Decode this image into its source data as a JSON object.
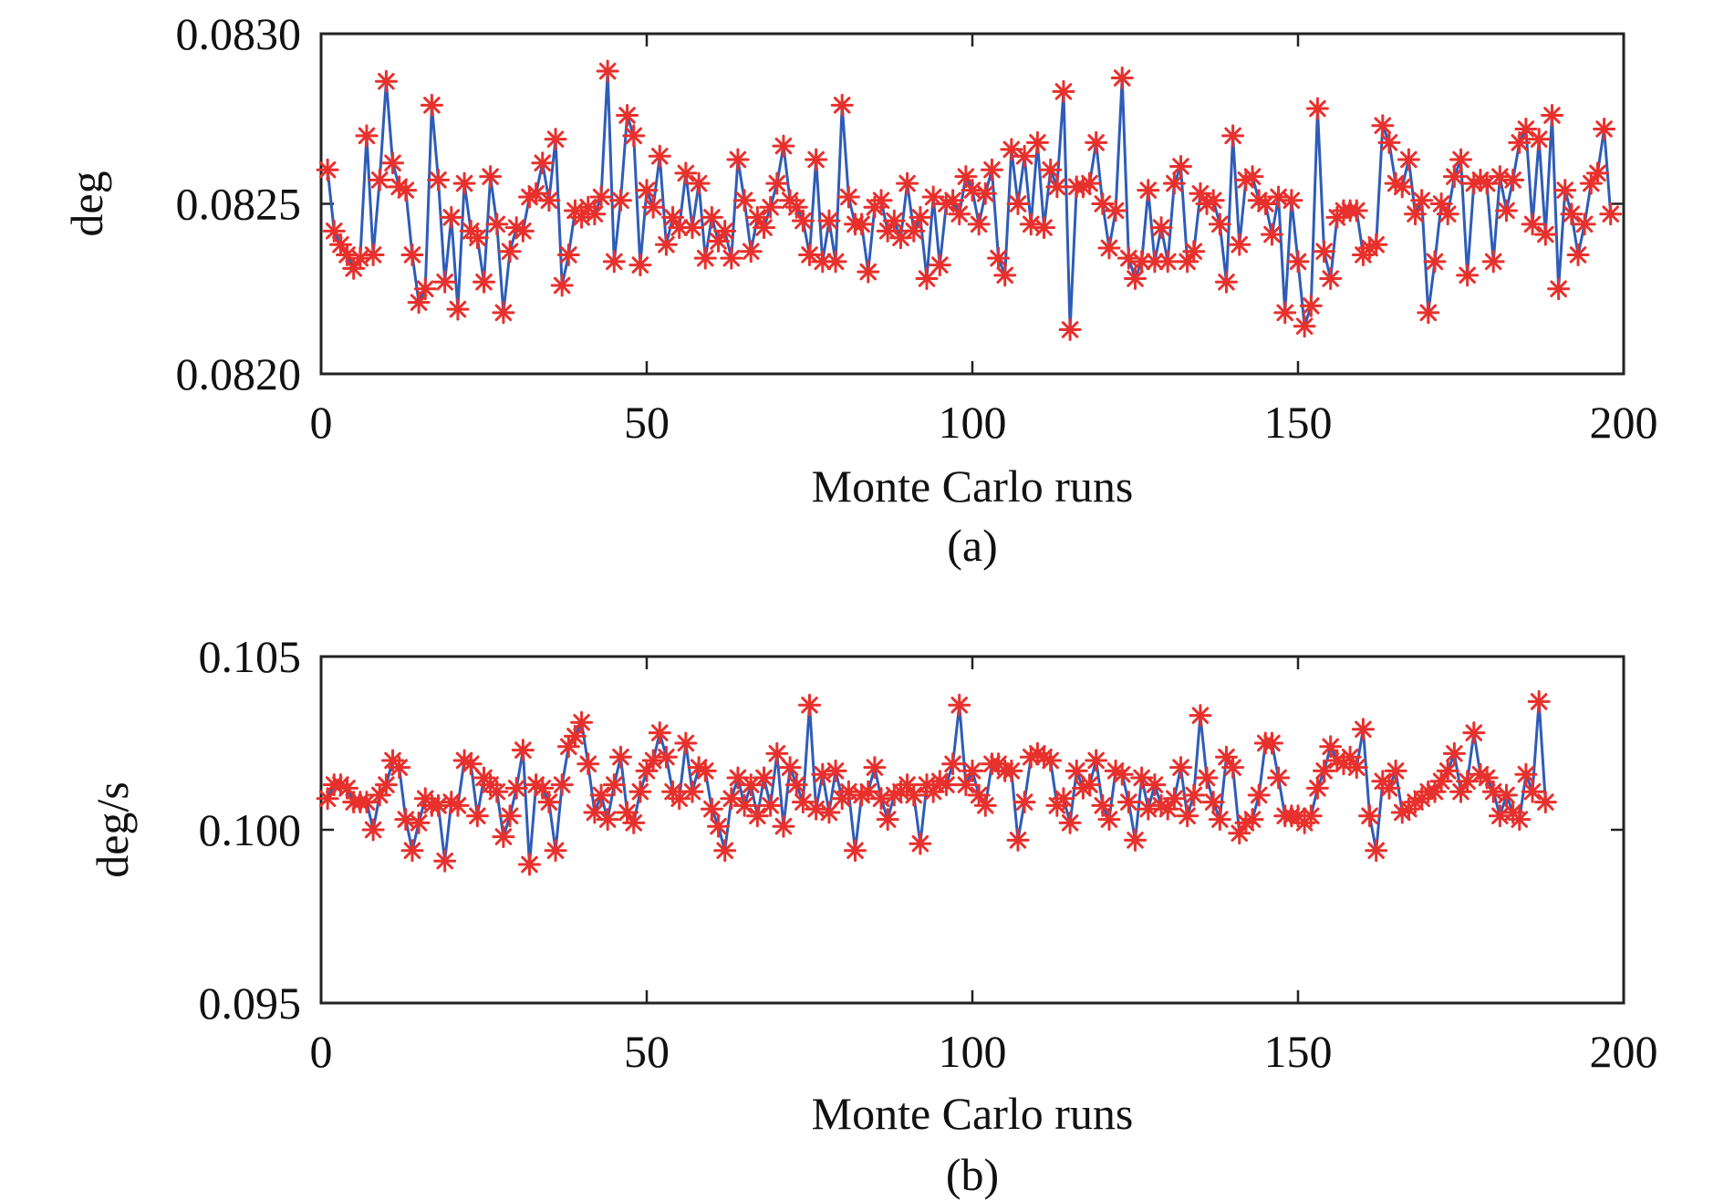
{
  "chart_data": [
    {
      "type": "line",
      "caption": "(a)",
      "xlabel": "Monte Carlo runs",
      "ylabel": "deg",
      "xlim": [
        0,
        200
      ],
      "ylim": [
        0.082,
        0.083
      ],
      "xticks": [
        0,
        50,
        100,
        150,
        200
      ],
      "yticks": [
        0.082,
        0.0825,
        0.083
      ],
      "xtick_labels": [
        "0",
        "50",
        "100",
        "150",
        "200"
      ],
      "ytick_labels": [
        "0.0820",
        "0.0825",
        "0.0830"
      ],
      "grid": false,
      "marker": "asterisk",
      "line_color": "#2e5cb8",
      "marker_color": "#e8302c",
      "x_start": 1,
      "values": [
        0.0826,
        0.08242,
        0.08238,
        0.08235,
        0.08231,
        0.08234,
        0.0827,
        0.08235,
        0.08257,
        0.08286,
        0.08262,
        0.08255,
        0.08254,
        0.08235,
        0.08221,
        0.08225,
        0.08279,
        0.08257,
        0.08227,
        0.08246,
        0.08219,
        0.08256,
        0.08242,
        0.0824,
        0.08227,
        0.08258,
        0.08244,
        0.08218,
        0.08236,
        0.08243,
        0.08242,
        0.08252,
        0.08253,
        0.08262,
        0.08251,
        0.08269,
        0.08226,
        0.08235,
        0.08248,
        0.08246,
        0.08249,
        0.08247,
        0.08252,
        0.08289,
        0.08233,
        0.08251,
        0.08276,
        0.0827,
        0.08232,
        0.08254,
        0.08249,
        0.08264,
        0.08238,
        0.08246,
        0.08243,
        0.08259,
        0.08243,
        0.08256,
        0.08234,
        0.08246,
        0.08239,
        0.08242,
        0.08234,
        0.08263,
        0.08251,
        0.08236,
        0.08246,
        0.08243,
        0.08249,
        0.08256,
        0.08267,
        0.08251,
        0.08249,
        0.08245,
        0.08235,
        0.08263,
        0.08233,
        0.08245,
        0.08233,
        0.08279,
        0.08252,
        0.08244,
        0.08244,
        0.0823,
        0.08249,
        0.08251,
        0.08242,
        0.08245,
        0.0824,
        0.08256,
        0.08242,
        0.08246,
        0.08228,
        0.08252,
        0.08232,
        0.0825,
        0.08251,
        0.08247,
        0.08258,
        0.08254,
        0.08244,
        0.08253,
        0.0826,
        0.08234,
        0.08229,
        0.08266,
        0.0825,
        0.08264,
        0.08244,
        0.08268,
        0.08243,
        0.0826,
        0.08255,
        0.08283,
        0.08213,
        0.08255,
        0.08255,
        0.08256,
        0.08268,
        0.0825,
        0.08237,
        0.08248,
        0.08287,
        0.08234,
        0.08228,
        0.08233,
        0.08254,
        0.08233,
        0.08243,
        0.08233,
        0.08256,
        0.08261,
        0.08233,
        0.08236,
        0.08253,
        0.0825,
        0.08251,
        0.08244,
        0.08227,
        0.0827,
        0.08238,
        0.08257,
        0.08258,
        0.08251,
        0.0825,
        0.08241,
        0.08252,
        0.08218,
        0.08251,
        0.08233,
        0.08214,
        0.0822,
        0.08278,
        0.08236,
        0.08228,
        0.08246,
        0.08248,
        0.08248,
        0.08248,
        0.08235,
        0.08237,
        0.08238,
        0.08273,
        0.08268,
        0.08256,
        0.08255,
        0.08263,
        0.08247,
        0.08251,
        0.08218,
        0.08233,
        0.0825,
        0.08247,
        0.08258,
        0.08263,
        0.08229,
        0.08256,
        0.08257,
        0.08256,
        0.08233,
        0.08258,
        0.08248,
        0.08257,
        0.08268,
        0.08272,
        0.08244,
        0.08269,
        0.08241,
        0.08276,
        0.08225,
        0.08254,
        0.08247,
        0.08235,
        0.08244,
        0.08256,
        0.08259,
        0.08272,
        0.08247
      ]
    },
    {
      "type": "line",
      "caption": "(b)",
      "xlabel": "Monte Carlo runs",
      "ylabel": "deg/s",
      "xlim": [
        0,
        200
      ],
      "ylim": [
        0.095,
        0.105
      ],
      "xticks": [
        0,
        50,
        100,
        150,
        200
      ],
      "yticks": [
        0.095,
        0.1,
        0.105
      ],
      "xtick_labels": [
        "0",
        "50",
        "100",
        "150",
        "200"
      ],
      "ytick_labels": [
        "0.095",
        "0.100",
        "0.105"
      ],
      "grid": false,
      "marker": "asterisk",
      "line_color": "#2e5cb8",
      "marker_color": "#e8302c",
      "x_start": 1,
      "values": [
        0.1009,
        0.1013,
        0.1013,
        0.1012,
        0.1008,
        0.1008,
        0.1008,
        0.1,
        0.101,
        0.1013,
        0.102,
        0.1018,
        0.1003,
        0.0994,
        0.1002,
        0.1009,
        0.1007,
        0.1007,
        0.0991,
        0.1008,
        0.1007,
        0.102,
        0.1019,
        0.1004,
        0.1015,
        0.1013,
        0.1011,
        0.0998,
        0.1004,
        0.1012,
        0.1023,
        0.099,
        0.1013,
        0.1012,
        0.1008,
        0.0994,
        0.1013,
        0.1024,
        0.1027,
        0.1031,
        0.1019,
        0.1005,
        0.101,
        0.1003,
        0.1013,
        0.1021,
        0.1005,
        0.1002,
        0.1011,
        0.1017,
        0.102,
        0.1028,
        0.1021,
        0.1011,
        0.1009,
        0.1025,
        0.1011,
        0.1018,
        0.1017,
        0.1006,
        0.1001,
        0.0994,
        0.1009,
        0.1015,
        0.1007,
        0.1013,
        0.1004,
        0.1015,
        0.1007,
        0.1022,
        0.1001,
        0.1018,
        0.1013,
        0.1008,
        0.1036,
        0.1006,
        0.1016,
        0.1005,
        0.1017,
        0.1009,
        0.1011,
        0.0994,
        0.101,
        0.1011,
        0.1018,
        0.1009,
        0.1003,
        0.101,
        0.1011,
        0.1013,
        0.101,
        0.0996,
        0.1013,
        0.1011,
        0.1014,
        0.1013,
        0.1019,
        0.1036,
        0.1013,
        0.1017,
        0.101,
        0.1007,
        0.1019,
        0.1019,
        0.1017,
        0.1017,
        0.0997,
        0.1008,
        0.1021,
        0.1022,
        0.1021,
        0.102,
        0.1007,
        0.1009,
        0.1002,
        0.1017,
        0.1012,
        0.1013,
        0.102,
        0.1007,
        0.1003,
        0.1017,
        0.1016,
        0.1008,
        0.0997,
        0.1015,
        0.1006,
        0.1013,
        0.1007,
        0.1006,
        0.1009,
        0.1018,
        0.1004,
        0.101,
        0.1033,
        0.1015,
        0.1008,
        0.1003,
        0.1021,
        0.1018,
        0.0999,
        0.1002,
        0.1003,
        0.101,
        0.1025,
        0.1025,
        0.1015,
        0.1004,
        0.1004,
        0.1004,
        0.1002,
        0.1004,
        0.1012,
        0.1017,
        0.1024,
        0.102,
        0.1019,
        0.1021,
        0.1018,
        0.1029,
        0.1004,
        0.0994,
        0.1014,
        0.1012,
        0.1017,
        0.1005,
        0.1006,
        0.1008,
        0.1009,
        0.1011,
        0.1011,
        0.1014,
        0.1017,
        0.1022,
        0.1011,
        0.1014,
        0.1028,
        0.1016,
        0.1015,
        0.1011,
        0.1004,
        0.101,
        0.1005,
        0.1003,
        0.1016,
        0.1011,
        0.1037,
        0.1008
      ]
    }
  ]
}
